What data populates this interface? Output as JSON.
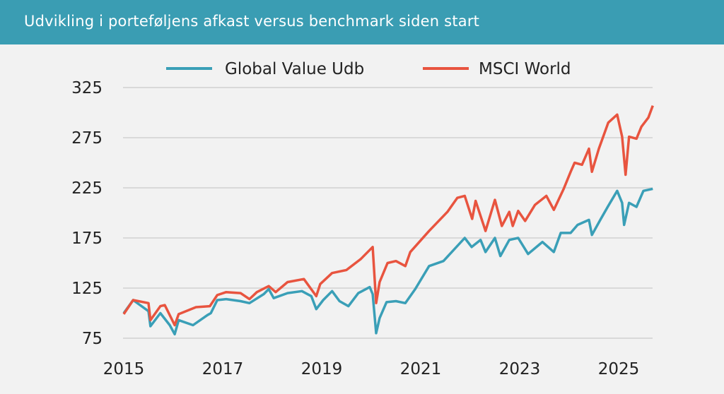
{
  "chart_data": {
    "type": "line",
    "title": "Udvikling i porteføljens afkast versus benchmark siden start",
    "xlabel": "",
    "ylabel": "",
    "xlim": [
      2015,
      2025.7
    ],
    "ylim": [
      75,
      325
    ],
    "x_ticks": [
      "2015",
      "2017",
      "2019",
      "2021",
      "2023",
      "2025"
    ],
    "x_tick_values": [
      2015,
      2017,
      2019,
      2021,
      2023,
      2025
    ],
    "y_ticks": [
      "75",
      "125",
      "175",
      "225",
      "275",
      "325"
    ],
    "y_tick_values": [
      75,
      125,
      175,
      225,
      275,
      325
    ],
    "grid": "horizontal",
    "legend_position": "top",
    "series": [
      {
        "name": "Global Value Udb",
        "color": "#3a9fb7",
        "points": [
          [
            2015.0,
            100
          ],
          [
            2015.19,
            113
          ],
          [
            2015.5,
            102
          ],
          [
            2015.54,
            87
          ],
          [
            2015.74,
            100
          ],
          [
            2015.93,
            88
          ],
          [
            2016.03,
            79
          ],
          [
            2016.11,
            93
          ],
          [
            2016.4,
            88
          ],
          [
            2016.69,
            98
          ],
          [
            2016.76,
            100
          ],
          [
            2016.89,
            113
          ],
          [
            2017.07,
            114
          ],
          [
            2017.36,
            112
          ],
          [
            2017.54,
            110
          ],
          [
            2017.83,
            119
          ],
          [
            2017.93,
            124
          ],
          [
            2018.03,
            115
          ],
          [
            2018.31,
            120
          ],
          [
            2018.6,
            122
          ],
          [
            2018.79,
            117
          ],
          [
            2018.89,
            104
          ],
          [
            2019.03,
            113
          ],
          [
            2019.21,
            122
          ],
          [
            2019.36,
            112
          ],
          [
            2019.54,
            107
          ],
          [
            2019.74,
            120
          ],
          [
            2019.97,
            126
          ],
          [
            2020.03,
            119
          ],
          [
            2020.1,
            80
          ],
          [
            2020.17,
            95
          ],
          [
            2020.31,
            111
          ],
          [
            2020.5,
            112
          ],
          [
            2020.69,
            110
          ],
          [
            2020.89,
            124
          ],
          [
            2021.17,
            147
          ],
          [
            2021.46,
            152
          ],
          [
            2021.89,
            175
          ],
          [
            2022.03,
            166
          ],
          [
            2022.21,
            173
          ],
          [
            2022.31,
            161
          ],
          [
            2022.5,
            175
          ],
          [
            2022.61,
            157
          ],
          [
            2022.79,
            173
          ],
          [
            2022.97,
            175
          ],
          [
            2023.17,
            159
          ],
          [
            2023.46,
            171
          ],
          [
            2023.69,
            161
          ],
          [
            2023.83,
            180
          ],
          [
            2024.03,
            180
          ],
          [
            2024.17,
            188
          ],
          [
            2024.4,
            193
          ],
          [
            2024.46,
            178
          ],
          [
            2024.64,
            194
          ],
          [
            2024.79,
            207
          ],
          [
            2024.97,
            222
          ],
          [
            2025.07,
            210
          ],
          [
            2025.11,
            188
          ],
          [
            2025.21,
            210
          ],
          [
            2025.36,
            206
          ],
          [
            2025.5,
            222
          ],
          [
            2025.69,
            224
          ]
        ]
      },
      {
        "name": "MSCI World",
        "color": "#e8543f",
        "points": [
          [
            2015.0,
            99
          ],
          [
            2015.19,
            113
          ],
          [
            2015.5,
            110
          ],
          [
            2015.54,
            93
          ],
          [
            2015.74,
            107
          ],
          [
            2015.83,
            108
          ],
          [
            2016.03,
            88
          ],
          [
            2016.11,
            99
          ],
          [
            2016.46,
            106
          ],
          [
            2016.74,
            107
          ],
          [
            2016.89,
            118
          ],
          [
            2017.07,
            121
          ],
          [
            2017.36,
            120
          ],
          [
            2017.54,
            114
          ],
          [
            2017.69,
            121
          ],
          [
            2017.93,
            127
          ],
          [
            2018.07,
            121
          ],
          [
            2018.31,
            131
          ],
          [
            2018.64,
            134
          ],
          [
            2018.89,
            117
          ],
          [
            2018.97,
            129
          ],
          [
            2019.21,
            140
          ],
          [
            2019.5,
            143
          ],
          [
            2019.79,
            154
          ],
          [
            2020.03,
            166
          ],
          [
            2020.1,
            110
          ],
          [
            2020.17,
            131
          ],
          [
            2020.33,
            150
          ],
          [
            2020.5,
            152
          ],
          [
            2020.69,
            147
          ],
          [
            2020.79,
            161
          ],
          [
            2021.17,
            182
          ],
          [
            2021.54,
            201
          ],
          [
            2021.74,
            215
          ],
          [
            2021.89,
            217
          ],
          [
            2022.04,
            194
          ],
          [
            2022.11,
            212
          ],
          [
            2022.31,
            182
          ],
          [
            2022.5,
            213
          ],
          [
            2022.64,
            187
          ],
          [
            2022.79,
            201
          ],
          [
            2022.86,
            187
          ],
          [
            2022.97,
            202
          ],
          [
            2023.11,
            192
          ],
          [
            2023.31,
            208
          ],
          [
            2023.54,
            217
          ],
          [
            2023.69,
            203
          ],
          [
            2023.89,
            224
          ],
          [
            2024.03,
            241
          ],
          [
            2024.11,
            250
          ],
          [
            2024.26,
            248
          ],
          [
            2024.4,
            264
          ],
          [
            2024.46,
            241
          ],
          [
            2024.6,
            264
          ],
          [
            2024.79,
            290
          ],
          [
            2024.97,
            298
          ],
          [
            2025.07,
            276
          ],
          [
            2025.14,
            238
          ],
          [
            2025.21,
            276
          ],
          [
            2025.36,
            274
          ],
          [
            2025.46,
            286
          ],
          [
            2025.6,
            295
          ],
          [
            2025.69,
            307
          ]
        ]
      }
    ]
  }
}
